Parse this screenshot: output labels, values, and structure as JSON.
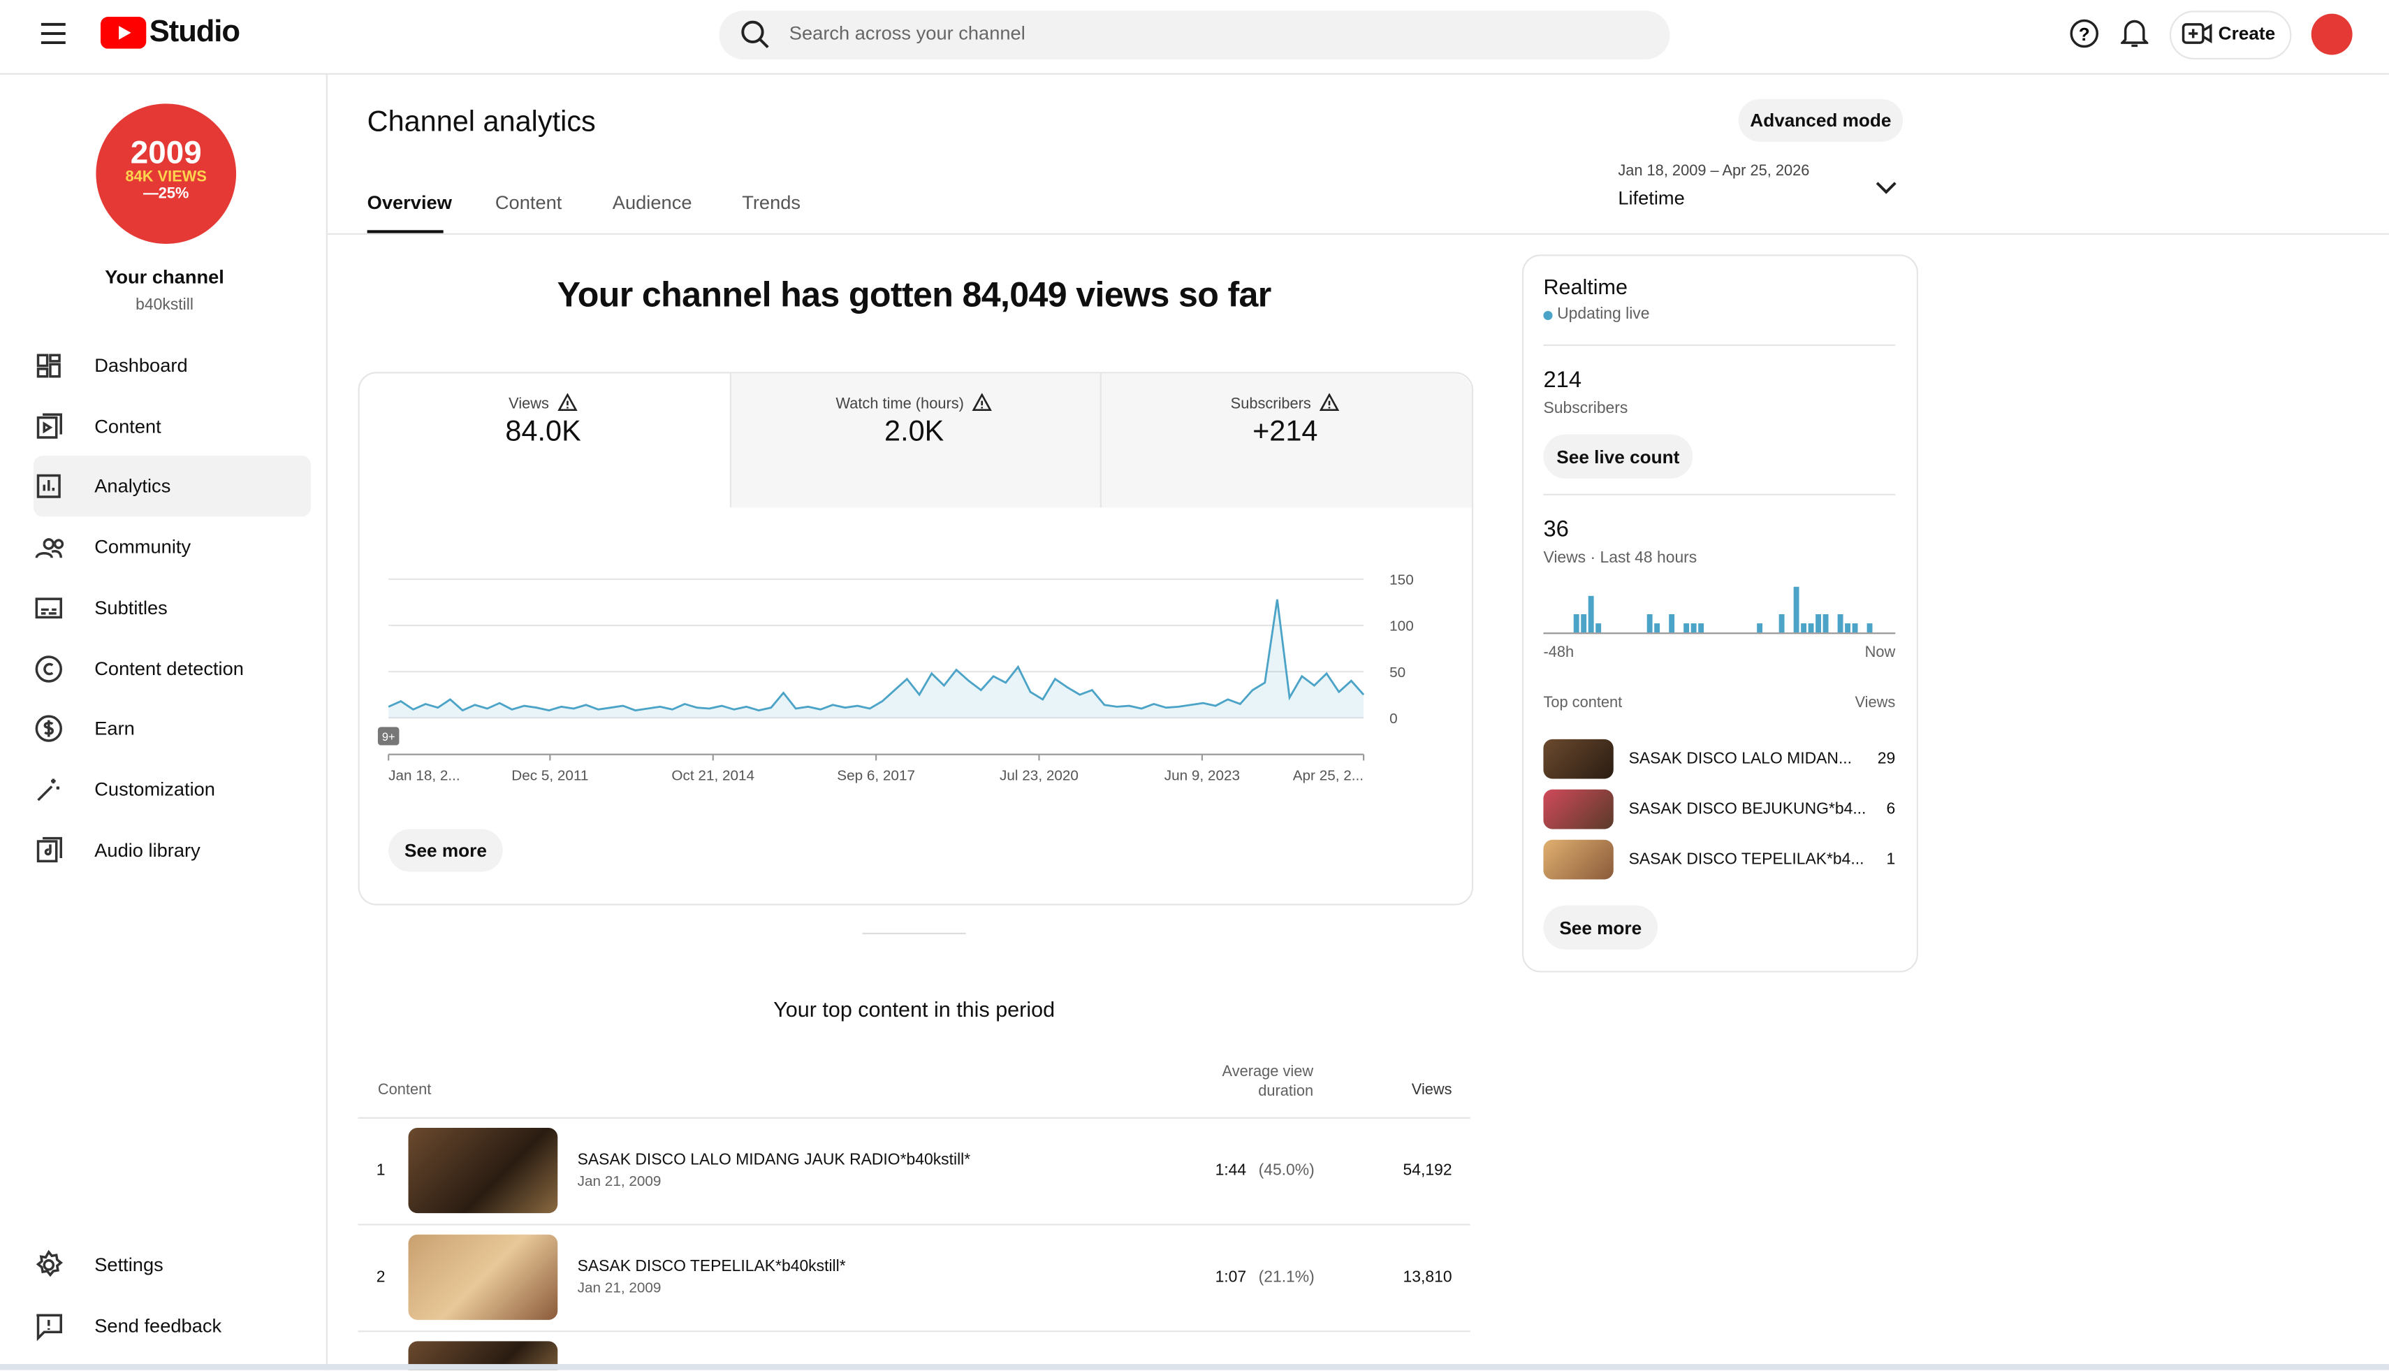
{
  "header": {
    "logo": "Studio",
    "search_placeholder": "Search across your channel",
    "create": "Create"
  },
  "sidebar": {
    "avatar": [
      "2009",
      "84K VIEWS",
      "—25%"
    ],
    "channel_name": "Your channel",
    "handle": "b40kstill",
    "nav": [
      "Dashboard",
      "Content",
      "Analytics",
      "Community",
      "Subtitles",
      "Content detection",
      "Earn",
      "Customization",
      "Audio library"
    ],
    "bottom": [
      "Settings",
      "Send feedback"
    ]
  },
  "page": {
    "title": "Channel analytics",
    "advanced": "Advanced mode",
    "tabs": [
      "Overview",
      "Content",
      "Audience",
      "Trends"
    ],
    "date_range": "Jan 18, 2009 – Apr 25, 2026",
    "period": "Lifetime"
  },
  "overview": {
    "headline": "Your channel has gotten 84,049 views so far",
    "metrics": [
      {
        "label": "Views",
        "value": "84.0K"
      },
      {
        "label": "Watch time (hours)",
        "value": "2.0K"
      },
      {
        "label": "Subscribers",
        "value": "+214"
      }
    ],
    "chart": {
      "type": "line",
      "ylim": [
        0,
        150
      ],
      "yticks": [
        0,
        50,
        100,
        150
      ],
      "badge": "9+",
      "xtick_labels": [
        "Jan 18, 2...",
        "Dec 5, 2011",
        "Oct 21, 2014",
        "Sep 6, 2017",
        "Jul 23, 2020",
        "Jun 9, 2023",
        "Apr 25, 2..."
      ],
      "color": "#4ba3c7",
      "values": [
        12,
        18,
        9,
        15,
        11,
        20,
        8,
        14,
        10,
        16,
        9,
        13,
        11,
        8,
        12,
        10,
        14,
        9,
        11,
        13,
        8,
        10,
        12,
        9,
        15,
        11,
        10,
        13,
        9,
        12,
        8,
        11,
        27,
        10,
        12,
        9,
        14,
        11,
        13,
        10,
        18,
        30,
        42,
        25,
        48,
        35,
        52,
        40,
        30,
        45,
        38,
        55,
        28,
        20,
        42,
        33,
        25,
        30,
        14,
        12,
        13,
        10,
        15,
        11,
        12,
        14,
        16,
        13,
        20,
        15,
        30,
        38,
        128,
        22,
        45,
        35,
        48,
        28,
        40,
        25
      ]
    },
    "see_more": "See more"
  },
  "top_content": {
    "title": "Your top content in this period",
    "headers": [
      "Content",
      "Average view duration",
      "Views"
    ],
    "rows": [
      {
        "rank": "1",
        "title": "SASAK DISCO LALO MIDANG JAUK RADIO*b40kstill*",
        "date": "Jan 21, 2009",
        "duration": "1:44",
        "percent": "(45.0%)",
        "views": "54,192"
      },
      {
        "rank": "2",
        "title": "SASAK DISCO TEPELILAK*b40kstill*",
        "date": "Jan 21, 2009",
        "duration": "1:07",
        "percent": "(21.1%)",
        "views": "13,810"
      }
    ]
  },
  "realtime": {
    "title": "Realtime",
    "status": "Updating live",
    "subscribers": "214",
    "subscribers_label": "Subscribers",
    "see_live": "See live count",
    "views": "36",
    "views_label": "Views · Last 48 hours",
    "chart": {
      "type": "bar",
      "color": "#4ba3c7",
      "values": [
        0,
        0,
        0,
        0,
        2,
        2,
        4,
        1,
        0,
        0,
        0,
        0,
        0,
        0,
        2,
        1,
        0,
        2,
        0,
        1,
        1,
        1,
        0,
        0,
        0,
        0,
        0,
        0,
        0,
        1,
        0,
        0,
        2,
        0,
        5,
        1,
        1,
        2,
        2,
        0,
        2,
        1,
        1,
        0,
        1,
        0,
        0,
        0
      ],
      "start": "-48h",
      "end": "Now"
    },
    "top_label": "Top content",
    "views_header": "Views",
    "items": [
      {
        "title": "SASAK DISCO LALO MIDAN...",
        "views": "29"
      },
      {
        "title": "SASAK DISCO BEJUKUNG*b4...",
        "views": "6"
      },
      {
        "title": "SASAK DISCO TEPELILAK*b4...",
        "views": "1"
      }
    ],
    "see_more": "See more"
  }
}
